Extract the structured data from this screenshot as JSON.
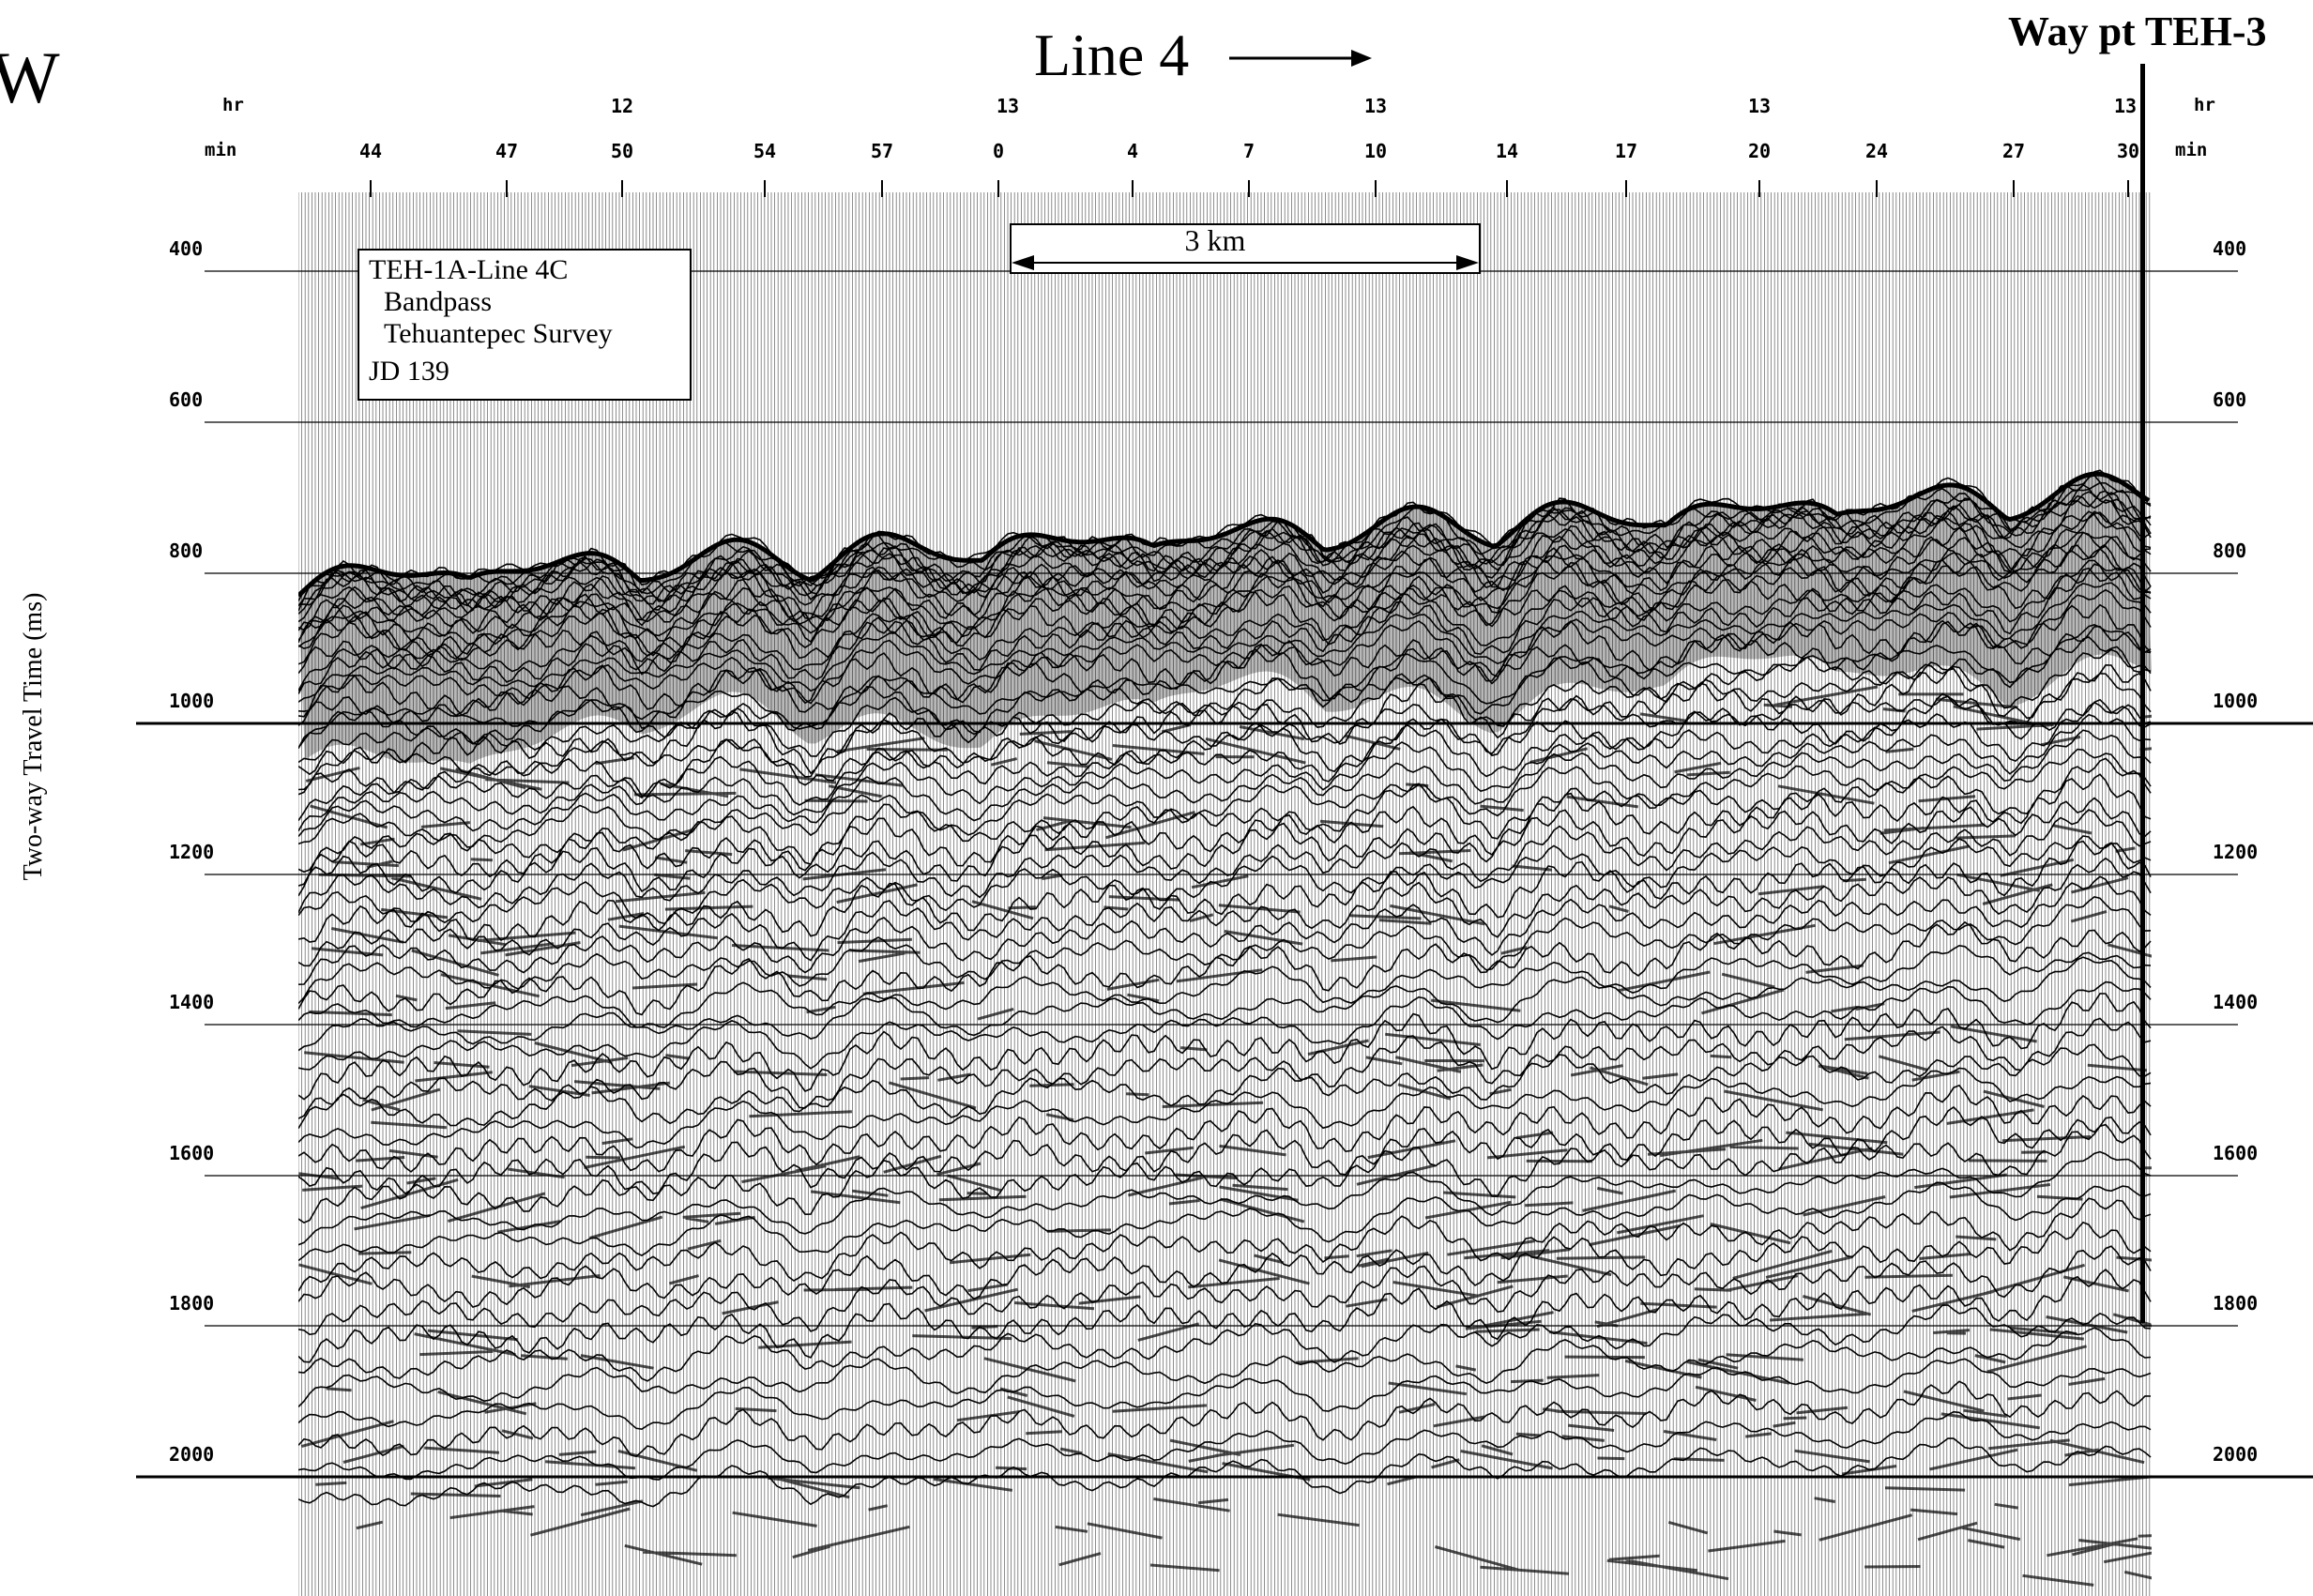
{
  "corner_label": "W",
  "title": "Line 4",
  "waypoint_label": "Way pt  TEH-3",
  "axis_top": {
    "hr_label": "hr",
    "min_label": "min",
    "hour_ticks": [
      "12",
      "13",
      "13",
      "13",
      "13"
    ],
    "minute_ticks": [
      "44",
      "47",
      "50",
      "54",
      "57",
      "0",
      "4",
      "7",
      "10",
      "14",
      "17",
      "20",
      "24",
      "27",
      "30"
    ]
  },
  "axis_left": {
    "label": "Two-way Travel Time (ms)",
    "ticks": [
      "400",
      "600",
      "800",
      "1000",
      "1200",
      "1400",
      "1600",
      "1800",
      "2000"
    ]
  },
  "axis_right": {
    "ticks": [
      "400",
      "600",
      "800",
      "1000",
      "1200",
      "1400",
      "1600",
      "1800",
      "2000"
    ]
  },
  "legend": {
    "line1": "TEH-1A-Line 4C",
    "line2": "Bandpass",
    "line3": "Tehuantepec Survey",
    "line4": "JD 139"
  },
  "scale_bar": {
    "label": "3 km"
  },
  "colors": {
    "ink": "#000000",
    "paper": "#ffffff"
  }
}
